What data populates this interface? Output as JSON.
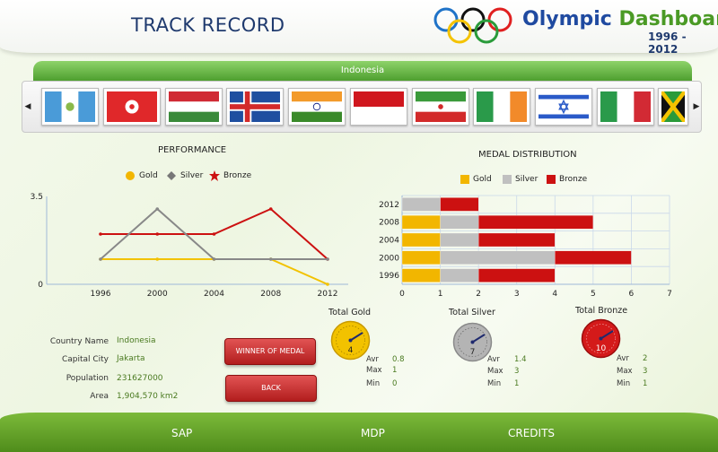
{
  "header": {
    "page_title": "TRACK RECORD",
    "app_title_part1": "Olympic ",
    "app_title_part2": "Dashboard",
    "years": "1996 - 2012",
    "colors": {
      "title": "#1f3a6e",
      "brand_blue": "#1f4aa0",
      "brand_green": "#4a9a25"
    }
  },
  "flag_panel": {
    "selected_country": "Indonesia",
    "left_arrow_icon": "triangle-left-icon",
    "right_arrow_icon": "triangle-right-icon",
    "flags": [
      "guatemala-flag-icon",
      "hong-kong-flag-icon",
      "hungary-flag-icon",
      "iceland-flag-icon",
      "india-flag-icon",
      "indonesia-flag-icon",
      "iran-flag-icon",
      "ireland-flag-icon",
      "israel-flag-icon",
      "italy-flag-icon",
      "jamaica-flag-icon"
    ]
  },
  "performance": {
    "title": "PERFORMANCE",
    "legend": [
      "Gold",
      "Silver",
      "Bronze"
    ]
  },
  "medal_distribution": {
    "title": "MEDAL DISTRIBUTION",
    "legend": [
      "Gold",
      "Silver",
      "Bronze"
    ]
  },
  "chart_data": [
    {
      "type": "line",
      "title": "PERFORMANCE",
      "x": [
        "1996",
        "2000",
        "2004",
        "2008",
        "2012"
      ],
      "series": [
        {
          "name": "Gold",
          "color": "#f2c200",
          "values": [
            1,
            1,
            1,
            1,
            0
          ]
        },
        {
          "name": "Silver",
          "color": "#888888",
          "values": [
            1,
            3,
            1,
            1,
            1
          ]
        },
        {
          "name": "Bronze",
          "color": "#cc1111",
          "values": [
            2,
            2,
            2,
            3,
            1
          ]
        }
      ],
      "ylim": [
        0,
        3.5
      ],
      "y_ticks": [
        "0",
        "3.5"
      ],
      "grid": false,
      "legend_position": "top"
    },
    {
      "type": "bar",
      "stacked": true,
      "orientation": "horizontal",
      "title": "MEDAL DISTRIBUTION",
      "categories": [
        "2012",
        "2008",
        "2004",
        "2000",
        "1996"
      ],
      "series": [
        {
          "name": "Gold",
          "color": "#f2b600",
          "values": [
            0,
            1,
            1,
            1,
            1
          ]
        },
        {
          "name": "Silver",
          "color": "#c0c0c0",
          "values": [
            1,
            1,
            1,
            3,
            1
          ]
        },
        {
          "name": "Bronze",
          "color": "#cc1111",
          "values": [
            1,
            3,
            2,
            2,
            2
          ]
        }
      ],
      "xlim": [
        0,
        7
      ],
      "x_ticks": [
        "0",
        "1",
        "2",
        "3",
        "4",
        "5",
        "6",
        "7"
      ],
      "grid": true,
      "legend_position": "top"
    }
  ],
  "country_info": {
    "labels": {
      "name": "Country Name",
      "capital": "Capital City",
      "population": "Population",
      "area": "Area"
    },
    "values": {
      "name": "Indonesia",
      "capital": "Jakarta",
      "population": "231627000",
      "area": "1,904,570 km2"
    }
  },
  "buttons": {
    "winner": "WINNER OF  MEDAL",
    "back": "BACK"
  },
  "totals": {
    "stat_labels": {
      "avr": "Avr",
      "max": "Max",
      "min": "Min"
    },
    "gold": {
      "title": "Total Gold",
      "total": "4",
      "avr": "0.8",
      "max": "1",
      "min": "0",
      "color": "#f2c200"
    },
    "silver": {
      "title": "Total Silver",
      "total": "7",
      "avr": "1.4",
      "max": "3",
      "min": "1",
      "color": "#a9a9a9"
    },
    "bronze": {
      "title": "Total Bronze",
      "total": "10",
      "avr": "2",
      "max": "3",
      "min": "1",
      "color": "#cc1111"
    }
  },
  "footer": {
    "items": [
      "SAP",
      "MDP",
      "CREDITS"
    ]
  }
}
